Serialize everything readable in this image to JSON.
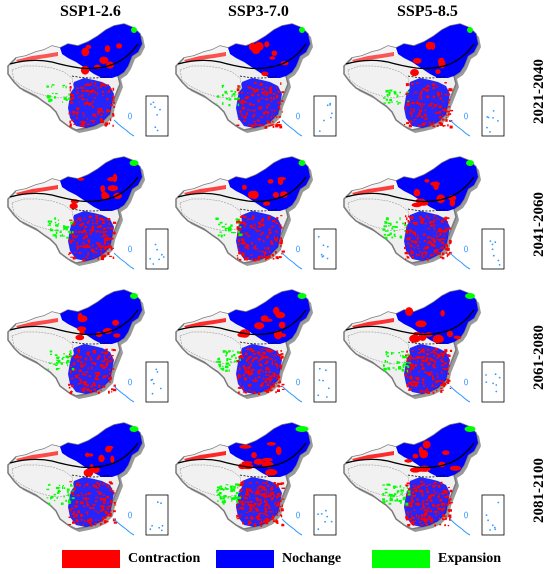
{
  "columns": [
    "SSP1-2.6",
    "SSP3-7.0",
    "SSP5-8.5"
  ],
  "rows": [
    "2021-2040",
    "2041-2060",
    "2061-2080",
    "2081-2100"
  ],
  "legend": [
    {
      "label": "Contraction",
      "color": "#ff0000"
    },
    {
      "label": "Nochange",
      "color": "#0000ff"
    },
    {
      "label": "Expansion",
      "color": "#00ff00"
    }
  ],
  "colors": {
    "contraction": "#ff0000",
    "nochange": "#0000ff",
    "expansion": "#00ff00",
    "background_land": "#efefef",
    "shadow": "#9a9a9a",
    "boundary": "#000000",
    "water": "#3399ff"
  }
}
